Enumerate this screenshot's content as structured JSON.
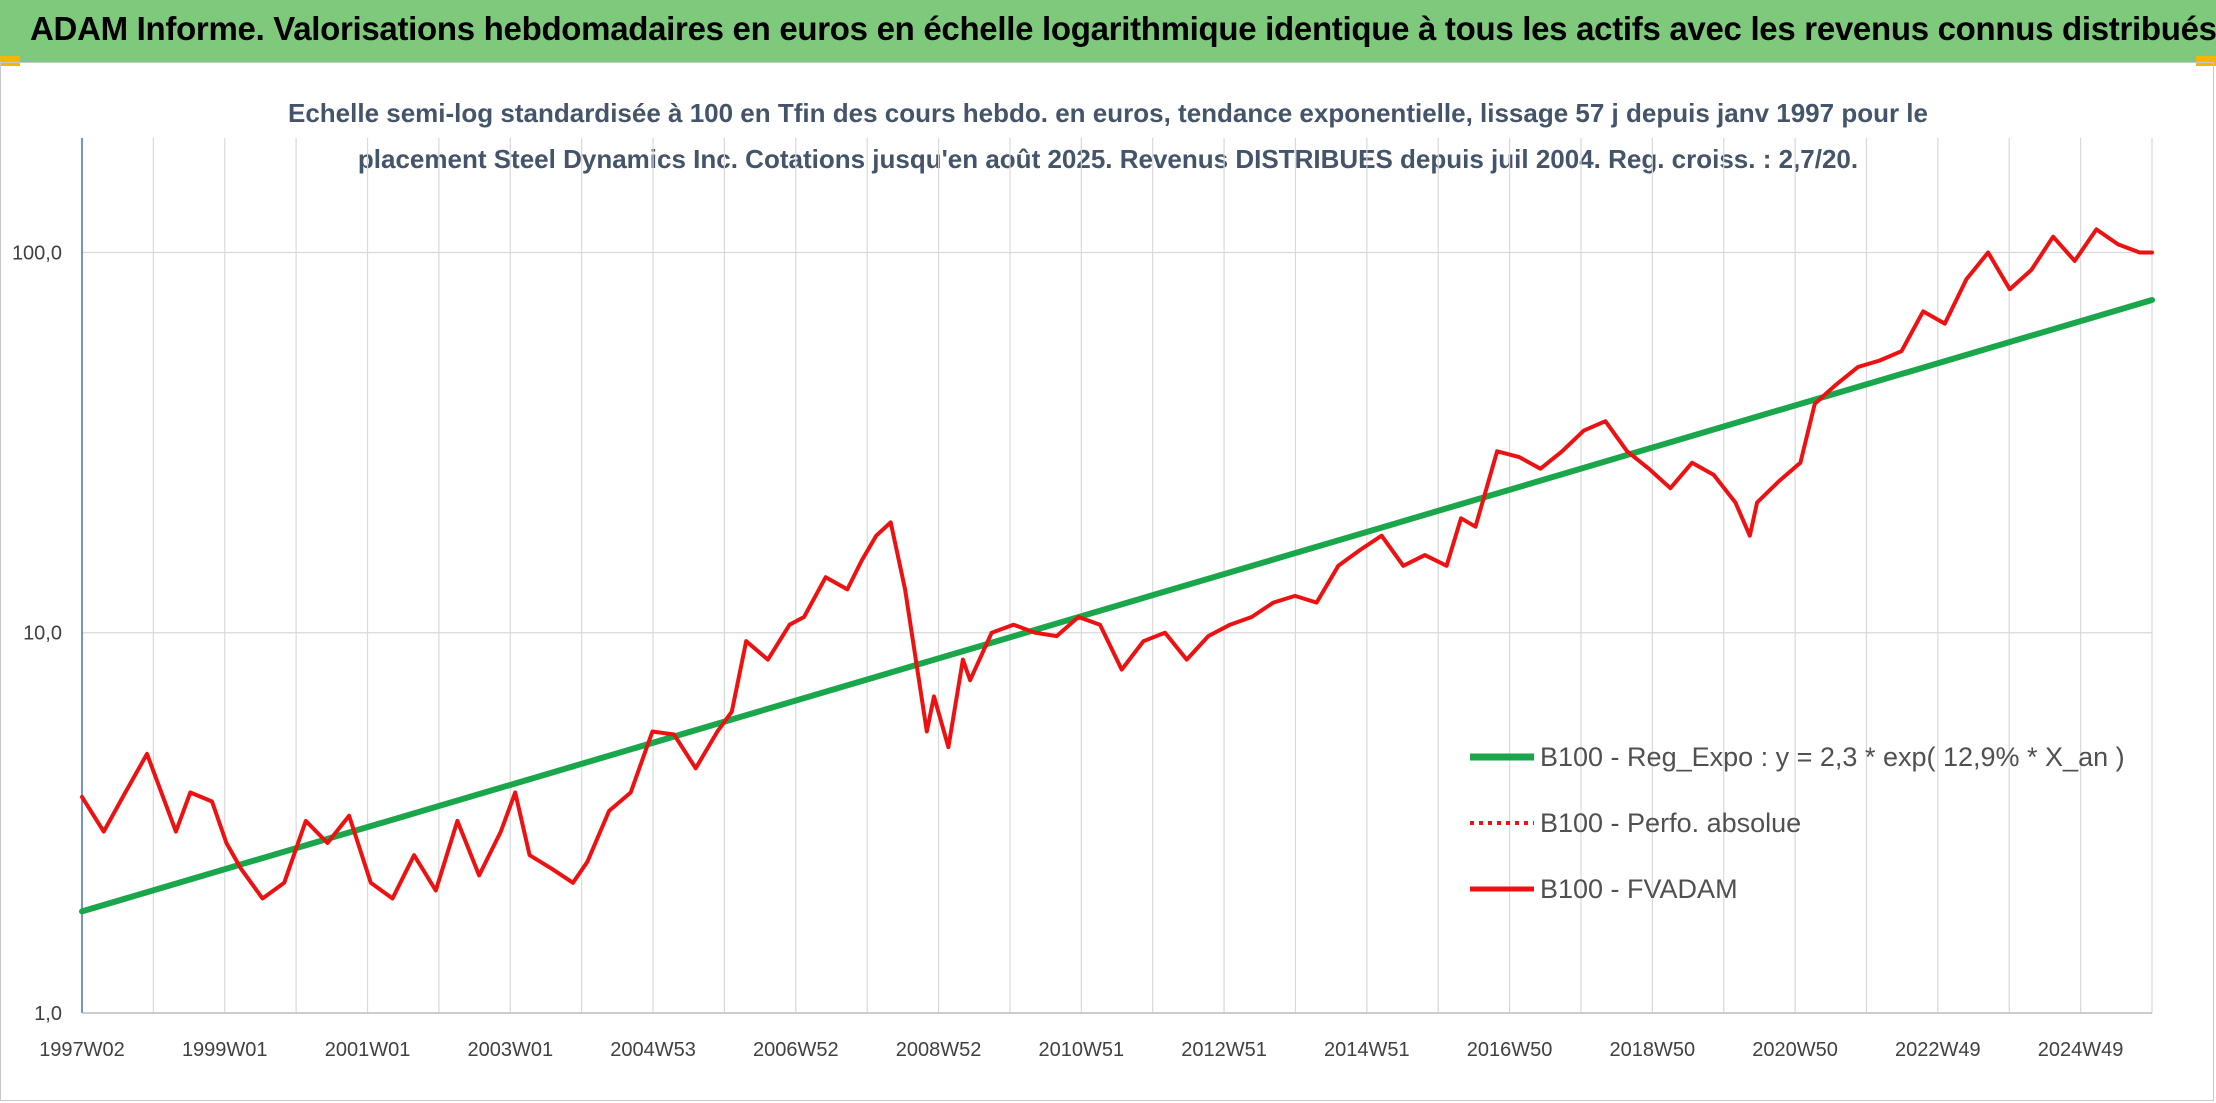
{
  "header": {
    "title": "ADAM Informe. Valorisations hebdomadaires en euros en échelle logarithmique identique à tous les actifs avec les revenus connus distribués"
  },
  "colors": {
    "header_bg": "#7fc97c",
    "trend": "#1aa64a",
    "fvadam": "#ee1111",
    "perfo": "#ee1111",
    "grid": "#d9d9d9",
    "axis": "#4472c4"
  },
  "chart_data": {
    "type": "line",
    "title": "",
    "subtitle_lines": [
      "Echelle semi-log standardisée à 100 en Tfin des cours hebdo. en euros, tendance exponentielle, lissage 57 j depuis janv 1997 pour le",
      "placement Steel Dynamics Inc. Cotations jusqu'en août 2025. Revenus DISTRIBUES depuis juil 2004. Reg. croiss. : 2,7/20."
    ],
    "y_scale": "log",
    "ylim": [
      1,
      200
    ],
    "y_ticks": [
      1,
      10,
      100
    ],
    "y_tick_labels": [
      "1,0",
      "10,0",
      "100,0"
    ],
    "xlim": [
      1997.0,
      2025.67
    ],
    "x_tick_labels": [
      "1997W02",
      "1999W01",
      "2001W01",
      "2003W01",
      "2004W53",
      "2006W52",
      "2008W52",
      "2010W51",
      "2012W51",
      "2014W51",
      "2016W50",
      "2018W50",
      "2020W50",
      "2022W49",
      "2024W49"
    ],
    "x_grid_count": 29,
    "grid": true,
    "legend_position": "bottom-right",
    "legend": [
      {
        "label": "B100 - Reg_Expo : y = 2,3 * exp( 12,9% *  X_an )",
        "style": "solid-thick",
        "color": "#1aa64a"
      },
      {
        "label": "B100 - Perfo. absolue",
        "style": "dotted",
        "color": "#ee1111"
      },
      {
        "label": "B100 - FVADAM",
        "style": "solid",
        "color": "#ee1111"
      }
    ],
    "series": [
      {
        "name": "B100 - Reg_Expo : y = 2,3 * exp( 12,9% *  X_an )",
        "x": [
          1997.0,
          2025.67
        ],
        "values": [
          1.85,
          75
        ]
      },
      {
        "name": "B100 - FVADAM",
        "x": [
          1997.0,
          1997.3,
          1997.6,
          1997.9,
          1998.3,
          1998.5,
          1998.8,
          1999.0,
          1999.2,
          1999.5,
          1999.8,
          2000.1,
          2000.4,
          2000.7,
          2001.0,
          2001.3,
          2001.6,
          2001.9,
          2002.2,
          2002.5,
          2002.8,
          2003.0,
          2003.2,
          2003.5,
          2003.8,
          2004.0,
          2004.3,
          2004.6,
          2004.9,
          2005.2,
          2005.5,
          2005.8,
          2006.0,
          2006.2,
          2006.5,
          2006.8,
          2007.0,
          2007.3,
          2007.6,
          2007.8,
          2008.0,
          2008.2,
          2008.4,
          2008.7,
          2008.8,
          2009.0,
          2009.2,
          2009.3,
          2009.6,
          2009.9,
          2010.2,
          2010.5,
          2010.8,
          2011.1,
          2011.4,
          2011.7,
          2012.0,
          2012.3,
          2012.6,
          2012.9,
          2013.2,
          2013.5,
          2013.8,
          2014.1,
          2014.4,
          2014.7,
          2015.0,
          2015.3,
          2015.6,
          2015.9,
          2016.1,
          2016.3,
          2016.6,
          2016.9,
          2017.2,
          2017.5,
          2017.8,
          2018.1,
          2018.4,
          2018.7,
          2019.0,
          2019.3,
          2019.6,
          2019.9,
          2020.1,
          2020.2,
          2020.5,
          2020.8,
          2021.0,
          2021.3,
          2021.6,
          2021.9,
          2022.2,
          2022.5,
          2022.8,
          2023.1,
          2023.4,
          2023.7,
          2024.0,
          2024.3,
          2024.6,
          2024.9,
          2025.2,
          2025.5,
          2025.67
        ],
        "values": [
          3.7,
          3.0,
          3.8,
          4.8,
          3.0,
          3.8,
          3.6,
          2.8,
          2.4,
          2.0,
          2.2,
          3.2,
          2.8,
          3.3,
          2.2,
          2.0,
          2.6,
          2.1,
          3.2,
          2.3,
          3.0,
          3.8,
          2.6,
          2.4,
          2.2,
          2.5,
          3.4,
          3.8,
          5.5,
          5.4,
          4.4,
          5.5,
          6.2,
          9.5,
          8.5,
          10.5,
          11.0,
          14.0,
          13.0,
          15.5,
          18.0,
          19.5,
          13.0,
          5.5,
          6.8,
          5.0,
          8.5,
          7.5,
          10.0,
          10.5,
          10.0,
          9.8,
          11.0,
          10.5,
          8.0,
          9.5,
          10.0,
          8.5,
          9.8,
          10.5,
          11.0,
          12.0,
          12.5,
          12.0,
          15.0,
          16.5,
          18.0,
          15.0,
          16.0,
          15.0,
          20.0,
          19.0,
          30.0,
          29.0,
          27.0,
          30.0,
          34.0,
          36.0,
          30.0,
          27.0,
          24.0,
          28.0,
          26.0,
          22.0,
          18.0,
          22.0,
          25.0,
          28.0,
          40.0,
          45.0,
          50.0,
          52.0,
          55.0,
          70.0,
          65.0,
          85.0,
          100.0,
          80.0,
          90.0,
          110.0,
          95.0,
          115.0,
          105.0,
          100.0,
          100.0
        ]
      }
    ]
  }
}
